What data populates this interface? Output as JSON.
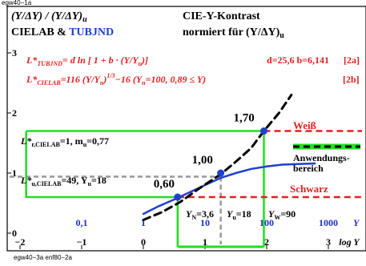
{
  "page": {
    "tag_top": "egw40−1a",
    "tag_bottom": "egw40−3a enf80−2a"
  },
  "header": {
    "left_line1": "(Y/ΔY) / (Y/ΔY)",
    "left_line1_sub": "u",
    "left_line2_a": "CIELAB & ",
    "left_line2_b": "TUBJND",
    "right_line1": "CIE-Y-Kontrast",
    "right_line2": "normiert für (Y/ΔY)",
    "right_line2_sub": "u"
  },
  "formulas": {
    "f1_lhs": "L*",
    "f1_sub": "TUBJND",
    "f1_rhs": "= d ln [ 1 + b · (Y/Y",
    "f1_rhs_sub": "u",
    "f1_rhs_end": ")]",
    "f1_params": "d=25,6    b=6,141",
    "f1_tag": "[2a]",
    "f2_lhs": "L*",
    "f2_sub": "CIELAB",
    "f2_rhs": "=116 (Y/Y",
    "f2_rhs_sub": "n",
    "f2_rhs_mid": ")",
    "f2_exp": "1/3",
    "f2_rhs_end": "−16  (Y",
    "f2_rhs_sub2": "n",
    "f2_rhs_end2": "=100, 0,89 ≤ Y)",
    "f2_tag": "[2b]"
  },
  "annotations": {
    "ref1": "L*",
    "ref1_sub": "r,CIELAB",
    "ref1_rest": "=1, m",
    "ref1_sub2": "u",
    "ref1_rest2": "=0,77",
    "ref2": "L*",
    "ref2_sub": "u,CIELAB",
    "ref2_rest": "=49, Y",
    "ref2_sub2": "u",
    "ref2_rest2": "=18",
    "v170": "1,70",
    "v100": "1,00",
    "v060": "0,60",
    "weiss": "Weiß",
    "schwarz": "Schwarz",
    "anwendung1": "Anwendungs-",
    "anwendung2": "bereich",
    "yn": "Y",
    "yn_sub": "N",
    "yn_rest": "=3,6",
    "yu": "Y",
    "yu_sub": "u",
    "yu_rest": "=18",
    "yw": "Y",
    "yw_sub": "W",
    "yw_rest": "=90"
  },
  "colors": {
    "curve": "#1f3fd0",
    "green": "#22dd22",
    "red": "#e02020",
    "gray": "#999999",
    "tick_blue": "#1a2fd0"
  },
  "chart_data": {
    "type": "line",
    "xlabel": "log Y",
    "xlim": [
      -2,
      3
    ],
    "ylim": [
      0,
      3.3
    ],
    "x_ticks": [
      -2,
      -1,
      0,
      1,
      2,
      3
    ],
    "x_tick_labels": [
      "−2",
      "−1",
      "0",
      "1",
      "2",
      "3"
    ],
    "y_ticks": [
      0,
      1,
      2,
      3
    ],
    "y_tick_labels": [
      "0",
      "1",
      "2",
      "3"
    ],
    "y_linear_ticks": {
      "label": "Y",
      "values": [
        "0,1",
        "1",
        "10",
        "100",
        "1000"
      ],
      "positions_logY": [
        -1,
        0,
        1,
        2,
        3
      ]
    },
    "series": [
      {
        "name": "TUBJND",
        "style": "solid",
        "points": [
          [
            0.0,
            0.32
          ],
          [
            0.25,
            0.45
          ],
          [
            0.5,
            0.56
          ],
          [
            0.75,
            0.68
          ],
          [
            1.0,
            0.8
          ],
          [
            1.255,
            0.92
          ],
          [
            1.5,
            1.0
          ],
          [
            1.75,
            1.07
          ],
          [
            2.0,
            1.11
          ],
          [
            2.25,
            1.14
          ],
          [
            2.5,
            1.15
          ],
          [
            2.78,
            1.16
          ]
        ]
      },
      {
        "name": "CIELAB",
        "style": "dashed",
        "points": [
          [
            0.0,
            0.22
          ],
          [
            0.3,
            0.35
          ],
          [
            0.6,
            0.52
          ],
          [
            0.9,
            0.74
          ],
          [
            1.255,
            0.98
          ],
          [
            1.5,
            1.19
          ],
          [
            1.75,
            1.42
          ],
          [
            1.954,
            1.7
          ],
          [
            2.2,
            2.0
          ],
          [
            2.4,
            2.3
          ]
        ]
      }
    ],
    "markers": [
      {
        "x": 0.556,
        "y": 0.6,
        "label": "0,60"
      },
      {
        "x": 1.255,
        "y": 1.0,
        "label": "1,00"
      },
      {
        "x": 1.954,
        "y": 1.7,
        "label": "1,70"
      }
    ],
    "ref_lines": {
      "gray_h": 0.94,
      "gray_v": 1.255,
      "green_box": {
        "x0": -1.9,
        "x1": 1.954,
        "y_low": 0.6,
        "y_high": 1.7
      },
      "green_bottom": [
        0.556,
        1.954
      ],
      "red_white": 1.7,
      "red_black": 0.6
    }
  }
}
